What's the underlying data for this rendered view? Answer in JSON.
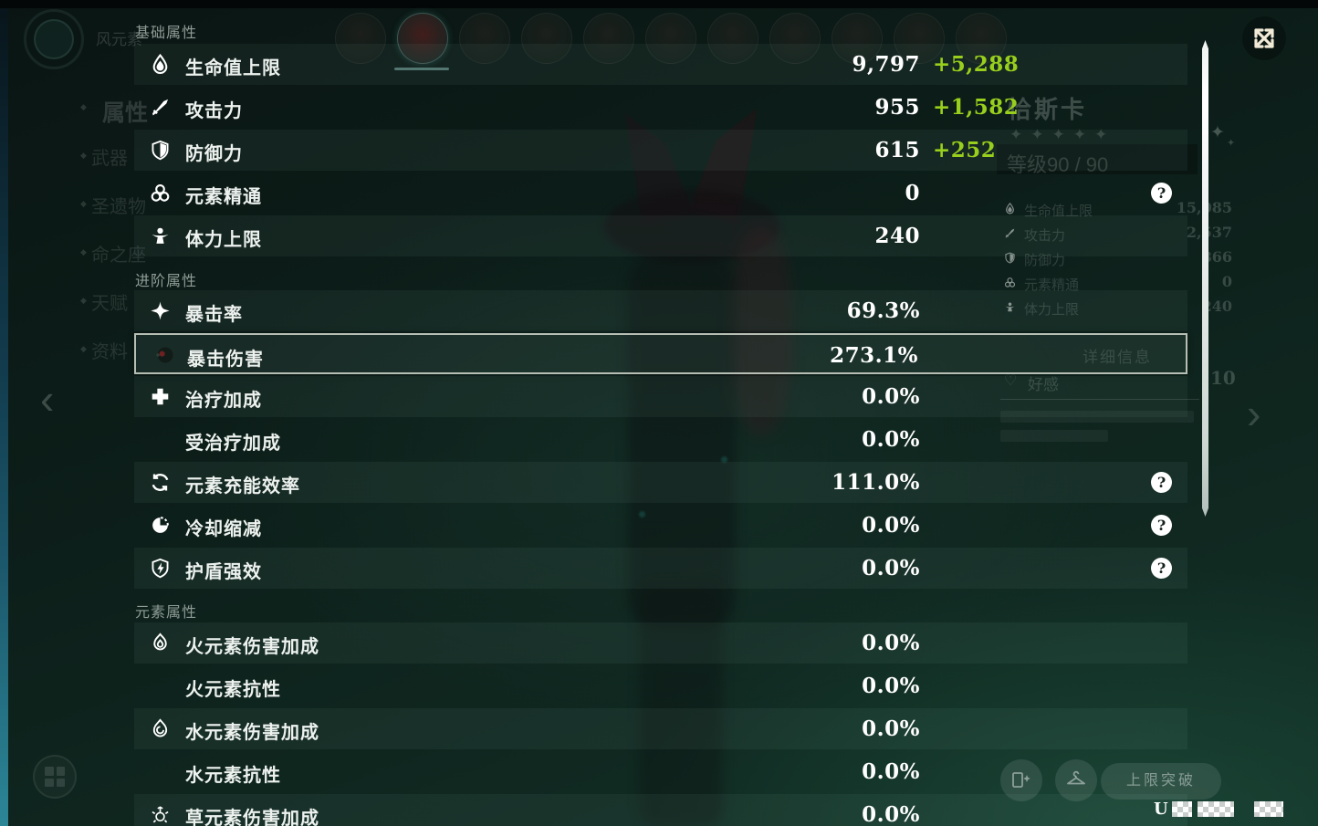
{
  "panel": {
    "sections": [
      {
        "header": "基础属性",
        "rows": [
          {
            "icon": "hp-icon",
            "label": "生命值上限",
            "value": "9,797",
            "bonus": "+5,288"
          },
          {
            "icon": "atk-icon",
            "label": "攻击力",
            "value": "955",
            "bonus": "+1,582"
          },
          {
            "icon": "def-icon",
            "label": "防御力",
            "value": "615",
            "bonus": "+252"
          },
          {
            "icon": "elemental-mastery-icon",
            "label": "元素精通",
            "value": "0",
            "help": true
          },
          {
            "icon": "stamina-icon",
            "label": "体力上限",
            "value": "240"
          }
        ]
      },
      {
        "header": "进阶属性",
        "rows": [
          {
            "icon": "crit-rate-icon",
            "label": "暴击率",
            "value": "69.3%"
          },
          {
            "icon": "cursor-icon",
            "label": "暴击伤害",
            "value": "273.1%",
            "highlighted": true
          },
          {
            "icon": "healing-bonus-icon",
            "label": "治疗加成",
            "value": "0.0%"
          },
          {
            "icon": null,
            "label": "受治疗加成",
            "value": "0.0%"
          },
          {
            "icon": "energy-recharge-icon",
            "label": "元素充能效率",
            "value": "111.0%",
            "help": true
          },
          {
            "icon": "cooldown-icon",
            "label": "冷却缩减",
            "value": "0.0%",
            "help": true
          },
          {
            "icon": "shield-strength-icon",
            "label": "护盾强效",
            "value": "0.0%",
            "help": true
          }
        ]
      },
      {
        "header": "元素属性",
        "rows": [
          {
            "icon": "pyro-icon",
            "label": "火元素伤害加成",
            "value": "0.0%"
          },
          {
            "icon": null,
            "label": "火元素抗性",
            "value": "0.0%"
          },
          {
            "icon": "hydro-icon",
            "label": "水元素伤害加成",
            "value": "0.0%"
          },
          {
            "icon": null,
            "label": "水元素抗性",
            "value": "0.0%"
          },
          {
            "icon": "dendro-icon",
            "label": "草元素伤害加成",
            "value": "0.0%"
          }
        ]
      }
    ],
    "help_glyph": "?"
  },
  "background": {
    "element_label": "风元素",
    "nav": [
      "属性",
      "武器",
      "圣遗物",
      "命之座",
      "天赋",
      "资料"
    ],
    "character": {
      "name": "恰斯卡",
      "stars": 5,
      "level_label": "等级90 / 90"
    },
    "stats": [
      {
        "icon": "hp-icon",
        "label": "生命值上限",
        "value": "15,085"
      },
      {
        "icon": "atk-icon",
        "label": "攻击力",
        "value": "2,537"
      },
      {
        "icon": "def-icon",
        "label": "防御力",
        "value": "866"
      },
      {
        "icon": "elemental-mastery-icon",
        "label": "元素精通",
        "value": "0"
      },
      {
        "icon": "stamina-icon",
        "label": "体力上限",
        "value": "240"
      }
    ],
    "detail_button": "详细信息",
    "friendship": {
      "label": "好感",
      "value": "10"
    },
    "ascend_button": "上限突破",
    "uid_prefix": "U",
    "avatars": {
      "count": 11,
      "selected_index": 1
    }
  },
  "colors": {
    "bonus_green": "#98cf1d",
    "highlight_border": "#d3d8d0",
    "close_icon_cream": "#f1ead6",
    "selected_underline_teal": "#a0dcd2"
  }
}
